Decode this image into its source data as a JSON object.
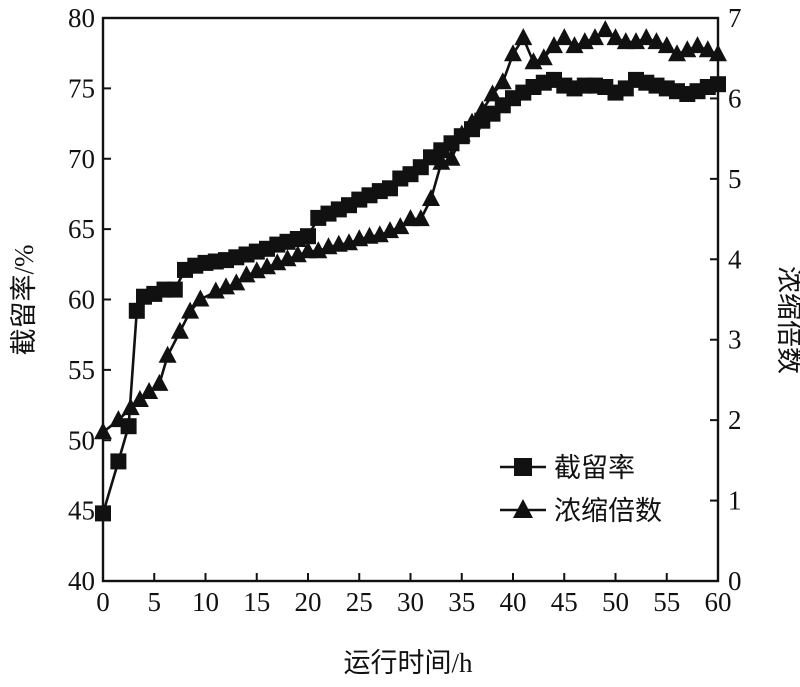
{
  "chart_data": {
    "type": "line",
    "xlabel": "运行时间/h",
    "ylabel_left": "截留率/%",
    "ylabel_right": "浓缩倍数",
    "xlim": [
      0,
      60
    ],
    "ylim_left": [
      40,
      80
    ],
    "ylim_right": [
      0,
      7
    ],
    "xticks": [
      "0",
      "5",
      "10",
      "15",
      "20",
      "25",
      "30",
      "35",
      "40",
      "45",
      "50",
      "55",
      "60"
    ],
    "yticks_left": [
      "40",
      "45",
      "50",
      "55",
      "60",
      "65",
      "70",
      "75",
      "80"
    ],
    "yticks_right": [
      "0",
      "1",
      "2",
      "3",
      "4",
      "5",
      "6",
      "7"
    ],
    "grid": false,
    "legend_position": "bottom-right",
    "series": [
      {
        "name": "截留率",
        "axis": "left",
        "marker": "square",
        "color": "#111111",
        "x": [
          0,
          1.5,
          2.5,
          3.3,
          4,
          5,
          6,
          7,
          8,
          9,
          10,
          11,
          12,
          13,
          14,
          15,
          16,
          17,
          18,
          19,
          20,
          21,
          22,
          23,
          24,
          25,
          26,
          27,
          28,
          29,
          30,
          31,
          32,
          33,
          34,
          35,
          36,
          37,
          38,
          39,
          40,
          41,
          42,
          43,
          44,
          45,
          46,
          47,
          48,
          49,
          50,
          51,
          52,
          53,
          54,
          55,
          56,
          57,
          58,
          59,
          60
        ],
        "values": [
          44.8,
          48.5,
          51,
          59.2,
          60.2,
          60.4,
          60.7,
          60.7,
          62.1,
          62.4,
          62.6,
          62.7,
          62.8,
          63,
          63.2,
          63.4,
          63.6,
          63.9,
          64.1,
          64.3,
          64.5,
          65.8,
          66.1,
          66.4,
          66.7,
          67.1,
          67.4,
          67.7,
          67.9,
          68.6,
          68.9,
          69.4,
          70.1,
          70.6,
          71.1,
          71.6,
          72.1,
          72.7,
          73.2,
          73.8,
          74.3,
          74.7,
          75.1,
          75.4,
          75.6,
          75.2,
          75,
          75.2,
          75.2,
          75.1,
          74.7,
          75,
          75.6,
          75.4,
          75.2,
          75,
          74.8,
          74.6,
          74.8,
          75.1,
          75.3
        ]
      },
      {
        "name": "浓缩倍数",
        "axis": "right",
        "marker": "triangle",
        "color": "#111111",
        "x": [
          0,
          1.5,
          2.7,
          3.6,
          4.5,
          5.5,
          6.3,
          7.5,
          8.5,
          9.5,
          11,
          12,
          13,
          14,
          15,
          16,
          17,
          18,
          19,
          20,
          21,
          22,
          23,
          24,
          25,
          26,
          27,
          28,
          29,
          30,
          31,
          32,
          33,
          34,
          35,
          36,
          37,
          38,
          39,
          40,
          41,
          42,
          43,
          44,
          45,
          46,
          47,
          48,
          49,
          50,
          51,
          52,
          53,
          54,
          55,
          56,
          57,
          58,
          59,
          60
        ],
        "values": [
          1.85,
          2,
          2.15,
          2.25,
          2.35,
          2.45,
          2.8,
          3.1,
          3.35,
          3.5,
          3.6,
          3.65,
          3.7,
          3.8,
          3.85,
          3.9,
          3.95,
          4,
          4.05,
          4.1,
          4.1,
          4.15,
          4.18,
          4.2,
          4.25,
          4.28,
          4.3,
          4.35,
          4.4,
          4.5,
          4.5,
          4.75,
          5.2,
          5.25,
          5.55,
          5.7,
          5.85,
          6.05,
          6.2,
          6.55,
          6.75,
          6.45,
          6.5,
          6.65,
          6.75,
          6.65,
          6.7,
          6.75,
          6.85,
          6.75,
          6.7,
          6.7,
          6.75,
          6.7,
          6.65,
          6.55,
          6.6,
          6.65,
          6.6,
          6.55
        ]
      }
    ]
  }
}
